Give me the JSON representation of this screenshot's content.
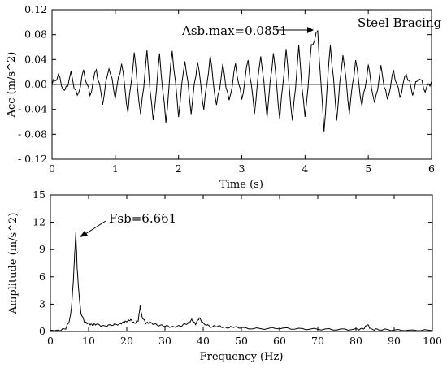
{
  "chart_data": [
    {
      "type": "line",
      "xlabel": "Time (s)",
      "ylabel": "Acc (m/s^2)",
      "xlim": [
        0,
        6
      ],
      "ylim": [
        -0.12,
        0.12
      ],
      "xticks": [
        0,
        1,
        2,
        3,
        4,
        5,
        6
      ],
      "yticks": [
        -0.12,
        -0.08,
        -0.04,
        0.0,
        0.04,
        0.08,
        0.12
      ],
      "xtick_labels": [
        "0",
        "1",
        "2",
        "3",
        "4",
        "5",
        "6"
      ],
      "ytick_labels": [
        "- 0.12",
        "- 0.08",
        "- 0.04",
        "0.00",
        "0.04",
        "0.08",
        "0.12"
      ],
      "grid": false,
      "zero_line": true,
      "legend": {
        "text": "Steel Bracing",
        "placement": "top-right"
      },
      "annotation": {
        "text": "Asb.max=0.0851",
        "x": 4.2,
        "y": 0.0851
      },
      "series": [
        {
          "x": [
            0,
            0.1,
            0.2,
            0.3,
            0.4,
            0.5,
            0.6,
            0.7,
            0.8,
            0.9,
            1.0,
            1.1,
            1.2,
            1.3,
            1.4,
            1.5,
            1.6,
            1.7,
            1.8,
            1.9,
            2.0,
            2.1,
            2.2,
            2.3,
            2.4,
            2.5,
            2.6,
            2.7,
            2.8,
            2.9,
            3.0,
            3.1,
            3.2,
            3.3,
            3.4,
            3.5,
            3.6,
            3.7,
            3.8,
            3.9,
            4.0,
            4.1,
            4.2,
            4.3,
            4.4,
            4.5,
            4.6,
            4.7,
            4.8,
            4.9,
            5.0,
            5.1,
            5.2,
            5.3,
            5.4,
            5.5,
            5.6,
            5.7,
            5.8,
            5.9,
            6.0
          ],
          "y": [
            0.0,
            0.015,
            -0.012,
            0.018,
            -0.02,
            0.022,
            -0.018,
            0.025,
            -0.03,
            0.028,
            -0.02,
            0.035,
            -0.045,
            0.05,
            -0.05,
            0.052,
            -0.06,
            0.048,
            -0.062,
            0.055,
            -0.05,
            0.04,
            -0.045,
            0.038,
            -0.04,
            0.045,
            -0.035,
            0.03,
            -0.028,
            0.032,
            -0.025,
            0.04,
            -0.045,
            0.048,
            -0.05,
            0.052,
            -0.055,
            0.056,
            -0.06,
            0.06,
            -0.055,
            0.062,
            0.0851,
            -0.075,
            0.065,
            -0.055,
            0.05,
            -0.045,
            0.04,
            -0.035,
            0.03,
            -0.032,
            0.028,
            -0.025,
            0.022,
            -0.02,
            0.018,
            -0.015,
            0.012,
            -0.01,
            0.005
          ]
        }
      ]
    },
    {
      "type": "line",
      "xlabel": "Frequency (Hz)",
      "ylabel": "Amplitude (m/s^2)",
      "xlim": [
        0,
        100
      ],
      "ylim": [
        0,
        15
      ],
      "xticks": [
        0,
        10,
        20,
        30,
        40,
        50,
        60,
        70,
        80,
        90,
        100
      ],
      "yticks": [
        0,
        3,
        6,
        9,
        12,
        15
      ],
      "xtick_labels": [
        "0",
        "10",
        "20",
        "30",
        "40",
        "50",
        "60",
        "70",
        "80",
        "90",
        "100"
      ],
      "ytick_labels": [
        "0",
        "3",
        "6",
        "9",
        "12",
        "15"
      ],
      "grid": false,
      "annotation": {
        "text": "Fsb=6.661",
        "x": 6.661,
        "y": 10.9
      },
      "series": [
        {
          "x": [
            0,
            2,
            4,
            5,
            5.5,
            6,
            6.3,
            6.661,
            7,
            7.5,
            8,
            9,
            10,
            11,
            12,
            14,
            16,
            18,
            19,
            20,
            21,
            22,
            23,
            23.5,
            24,
            25,
            26,
            28,
            30,
            32,
            34,
            36,
            37,
            38,
            39,
            40,
            42,
            44,
            46,
            48,
            50,
            55,
            60,
            65,
            70,
            75,
            80,
            82,
            83,
            84,
            86,
            90,
            95,
            100
          ],
          "y": [
            0.05,
            0.1,
            0.3,
            1.2,
            2.5,
            5.5,
            8.0,
            10.9,
            7.0,
            4.0,
            2.0,
            1.0,
            0.9,
            0.7,
            0.8,
            0.6,
            0.7,
            0.8,
            1.0,
            1.1,
            1.3,
            0.9,
            1.2,
            2.8,
            1.6,
            0.9,
            1.0,
            0.7,
            0.6,
            0.5,
            0.6,
            0.9,
            1.3,
            0.8,
            1.5,
            0.9,
            0.5,
            0.6,
            0.4,
            0.5,
            0.4,
            0.3,
            0.35,
            0.3,
            0.25,
            0.2,
            0.25,
            0.3,
            0.75,
            0.25,
            0.2,
            0.15,
            0.12,
            0.1
          ]
        }
      ]
    }
  ]
}
